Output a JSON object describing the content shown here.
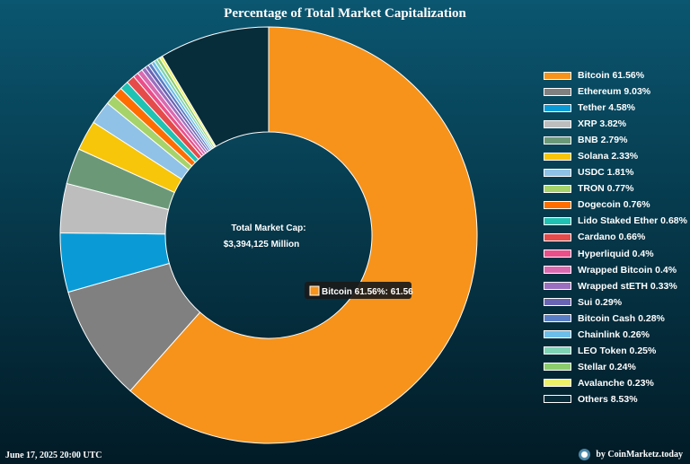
{
  "title": "Percentage of Total Market Capitalization",
  "center": {
    "line1": "Total Market Cap:",
    "line2": "$3,394,125 Million"
  },
  "tooltip": {
    "text": "Bitcoin 61.56%: 61.56",
    "color": "#f7931a"
  },
  "footer": {
    "date": "June 17, 2025 20:00 UTC",
    "credit": "by CoinMarketz.today",
    "credit_icon": "coinmarketz-logo-icon"
  },
  "chart_data": {
    "type": "doughnut",
    "title": "Percentage of Total Market Capitalization",
    "center_label": "Total Market Cap:",
    "center_value": "$3,394,125 Million",
    "legend_position": "right",
    "series": [
      {
        "name": "Bitcoin",
        "value": 61.56,
        "label": "Bitcoin 61.56%",
        "color": "#f7931a"
      },
      {
        "name": "Ethereum",
        "value": 9.03,
        "label": "Ethereum 9.03%",
        "color": "#808080"
      },
      {
        "name": "Tether",
        "value": 4.58,
        "label": "Tether 4.58%",
        "color": "#0a9bd6"
      },
      {
        "name": "XRP",
        "value": 3.82,
        "label": "XRP 3.82%",
        "color": "#bdbdbd"
      },
      {
        "name": "BNB",
        "value": 2.79,
        "label": "BNB 2.79%",
        "color": "#6b9978"
      },
      {
        "name": "Solana",
        "value": 2.33,
        "label": "Solana 2.33%",
        "color": "#f7c50a"
      },
      {
        "name": "USDC",
        "value": 1.81,
        "label": "USDC 1.81%",
        "color": "#8fc2e6"
      },
      {
        "name": "TRON",
        "value": 0.77,
        "label": "TRON 0.77%",
        "color": "#a6d36a"
      },
      {
        "name": "Dogecoin",
        "value": 0.76,
        "label": "Dogecoin 0.76%",
        "color": "#ff6d00"
      },
      {
        "name": "Lido Staked Ether",
        "value": 0.68,
        "label": "Lido Staked Ether 0.68%",
        "color": "#20c2b4"
      },
      {
        "name": "Cardano",
        "value": 0.66,
        "label": "Cardano 0.66%",
        "color": "#e54b4b"
      },
      {
        "name": "Hyperliquid",
        "value": 0.4,
        "label": "Hyperliquid 0.4%",
        "color": "#ea4f8a"
      },
      {
        "name": "Wrapped Bitcoin",
        "value": 0.4,
        "label": "Wrapped Bitcoin 0.4%",
        "color": "#d96ab0"
      },
      {
        "name": "Wrapped stETH",
        "value": 0.33,
        "label": "Wrapped stETH 0.33%",
        "color": "#9b6fbf"
      },
      {
        "name": "Sui",
        "value": 0.29,
        "label": "Sui 0.29%",
        "color": "#6a64b5"
      },
      {
        "name": "Bitcoin Cash",
        "value": 0.28,
        "label": "Bitcoin Cash 0.28%",
        "color": "#5a7ec6"
      },
      {
        "name": "Chainlink",
        "value": 0.26,
        "label": "Chainlink 0.26%",
        "color": "#6cbde8"
      },
      {
        "name": "LEO Token",
        "value": 0.25,
        "label": "LEO Token 0.25%",
        "color": "#7fd3b5"
      },
      {
        "name": "Stellar",
        "value": 0.24,
        "label": "Stellar 0.24%",
        "color": "#8ccc6c"
      },
      {
        "name": "Avalanche",
        "value": 0.23,
        "label": "Avalanche 0.23%",
        "color": "#eef06a"
      },
      {
        "name": "Others",
        "value": 8.53,
        "label": "Others 8.53%",
        "color": "#072c3a"
      }
    ]
  }
}
